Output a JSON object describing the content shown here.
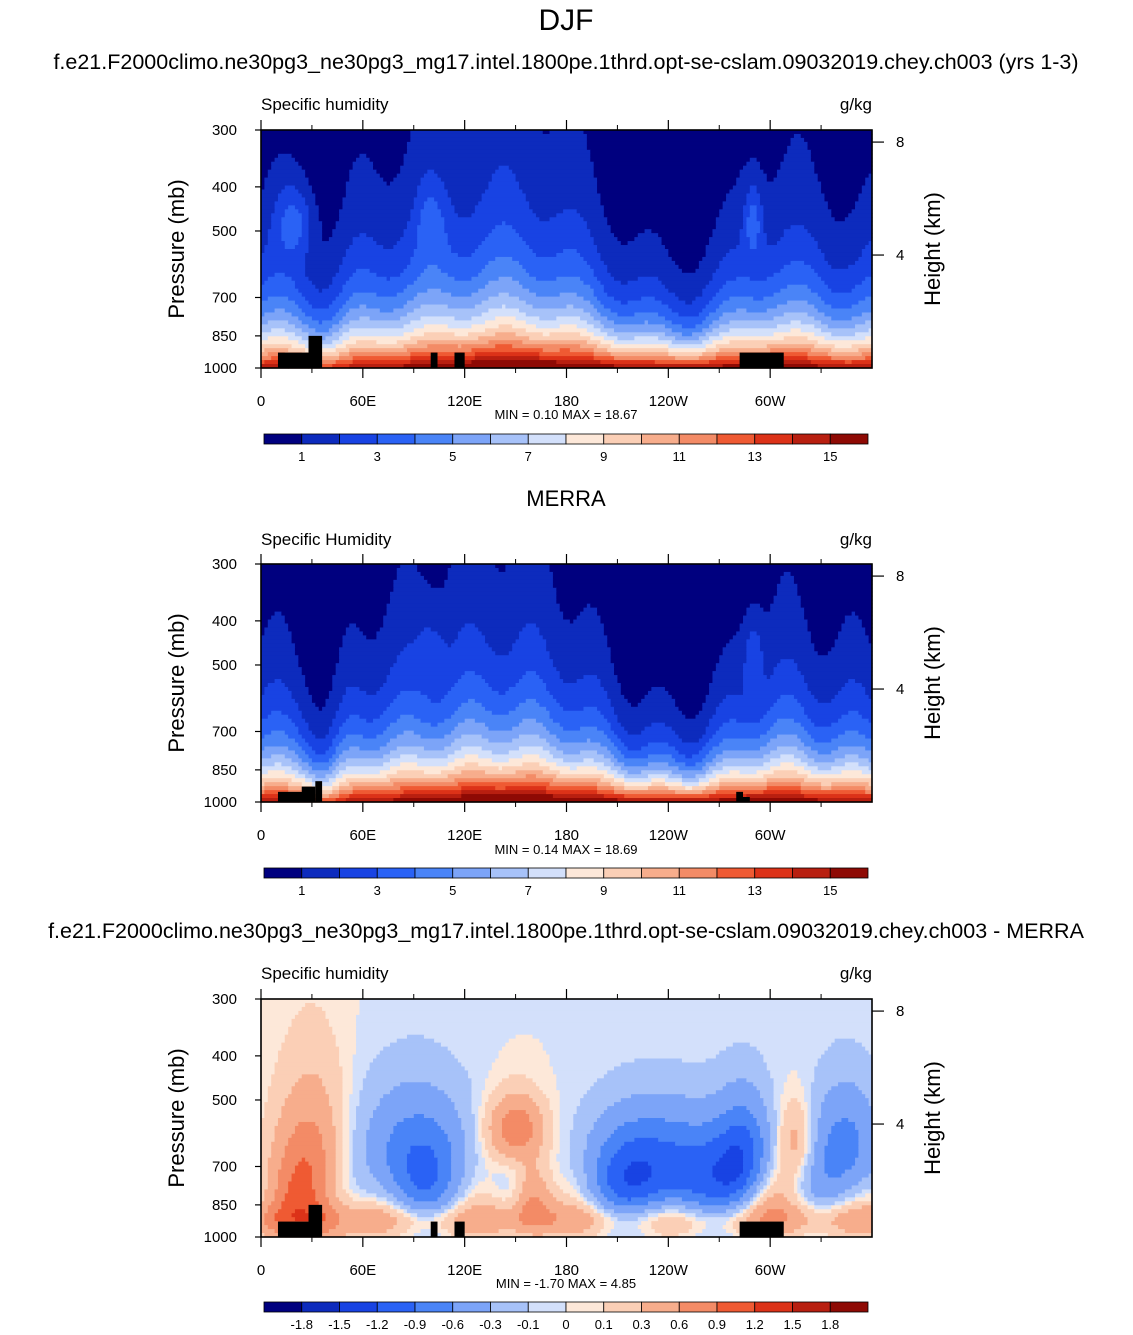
{
  "page": {
    "title": "DJF",
    "colors": {
      "frame": "#000000",
      "land": "#000000"
    }
  },
  "chart_data": [
    {
      "type": "heatmap",
      "header": "f.e21.F2000climo.ne30pg3_ne30pg3_mg17.intel.1800pe.1thrd.opt-se-cslam.09032019.chey.ch003 (yrs 1-3)",
      "left_label": "Specific humidity",
      "right_label": "g/kg",
      "ylabel": "Pressure (mb)",
      "y2label": "Height (km)",
      "x_ticks": [
        {
          "v": 0,
          "l": "0"
        },
        {
          "v": 60,
          "l": "60E"
        },
        {
          "v": 120,
          "l": "120E"
        },
        {
          "v": 180,
          "l": "180"
        },
        {
          "v": 240,
          "l": "120W"
        },
        {
          "v": 300,
          "l": "60W"
        }
      ],
      "y_ticks": [
        300,
        400,
        500,
        700,
        850,
        1000
      ],
      "y2_ticks": [
        {
          "km": 8,
          "l": "8"
        },
        {
          "km": 4,
          "l": "4"
        }
      ],
      "ylim": [
        1000,
        300
      ],
      "xlim": [
        0,
        360
      ],
      "stats_text": "MIN =   0.10  MAX =  18.67",
      "min": 0.1,
      "max": 18.67,
      "colorbar": {
        "levels": [
          0,
          1,
          2,
          3,
          4,
          5,
          6,
          7,
          8,
          9,
          10,
          11,
          12,
          13,
          14,
          15,
          16
        ],
        "labels": [
          "1",
          "3",
          "5",
          "7",
          "9",
          "11",
          "13",
          "15"
        ],
        "label_level_index": [
          1,
          3,
          5,
          7,
          9,
          11,
          13,
          15
        ]
      },
      "field": "mean",
      "mask_boxes": [
        [
          10,
          32,
          925,
          1000
        ],
        [
          28,
          36,
          850,
          1000
        ],
        [
          100,
          104,
          925,
          1000
        ],
        [
          114,
          120,
          925,
          1000
        ],
        [
          282,
          308,
          925,
          1000
        ]
      ]
    },
    {
      "type": "heatmap",
      "header": "MERRA",
      "left_label": "Specific Humidity",
      "right_label": "g/kg",
      "ylabel": "Pressure (mb)",
      "y2label": "Height (km)",
      "x_ticks": [
        {
          "v": 0,
          "l": "0"
        },
        {
          "v": 60,
          "l": "60E"
        },
        {
          "v": 120,
          "l": "120E"
        },
        {
          "v": 180,
          "l": "180"
        },
        {
          "v": 240,
          "l": "120W"
        },
        {
          "v": 300,
          "l": "60W"
        }
      ],
      "y_ticks": [
        300,
        400,
        500,
        700,
        850,
        1000
      ],
      "y2_ticks": [
        {
          "km": 8,
          "l": "8"
        },
        {
          "km": 4,
          "l": "4"
        }
      ],
      "ylim": [
        1000,
        300
      ],
      "xlim": [
        0,
        360
      ],
      "stats_text": "MIN =   0.14  MAX =  18.69",
      "min": 0.14,
      "max": 18.69,
      "colorbar": {
        "levels": [
          0,
          1,
          2,
          3,
          4,
          5,
          6,
          7,
          8,
          9,
          10,
          11,
          12,
          13,
          14,
          15,
          16
        ],
        "labels": [
          "1",
          "3",
          "5",
          "7",
          "9",
          "11",
          "13",
          "15"
        ],
        "label_level_index": [
          1,
          3,
          5,
          7,
          9,
          11,
          13,
          15
        ]
      },
      "field": "merra",
      "mask_boxes": [
        [
          10,
          26,
          950,
          1000
        ],
        [
          24,
          32,
          925,
          1000
        ],
        [
          32,
          36,
          900,
          1000
        ],
        [
          280,
          284,
          950,
          1000
        ],
        [
          282,
          288,
          975,
          1000
        ]
      ]
    },
    {
      "type": "heatmap",
      "header": "f.e21.F2000climo.ne30pg3_ne30pg3_mg17.intel.1800pe.1thrd.opt-se-cslam.09032019.chey.ch003 - MERRA",
      "left_label": "Specific humidity",
      "right_label": "g/kg",
      "ylabel": "Pressure (mb)",
      "y2label": "Height (km)",
      "x_ticks": [
        {
          "v": 0,
          "l": "0"
        },
        {
          "v": 60,
          "l": "60E"
        },
        {
          "v": 120,
          "l": "120E"
        },
        {
          "v": 180,
          "l": "180"
        },
        {
          "v": 240,
          "l": "120W"
        },
        {
          "v": 300,
          "l": "60W"
        }
      ],
      "y_ticks": [
        300,
        400,
        500,
        700,
        850,
        1000
      ],
      "y2_ticks": [
        {
          "km": 8,
          "l": "8"
        },
        {
          "km": 4,
          "l": "4"
        }
      ],
      "ylim": [
        1000,
        300
      ],
      "xlim": [
        0,
        360
      ],
      "stats_text": "MIN =  -1.70  MAX =   4.85",
      "min": -1.7,
      "max": 4.85,
      "colorbar": {
        "levels": [
          -2.1,
          -1.8,
          -1.5,
          -1.2,
          -0.9,
          -0.6,
          -0.3,
          -0.1,
          0,
          0.1,
          0.3,
          0.6,
          0.9,
          1.2,
          1.5,
          1.8,
          2.1
        ],
        "labels": [
          "-1.8",
          "-1.5",
          "-1.2",
          "-0.9",
          "-0.6",
          "-0.3",
          "-0.1",
          "0",
          "0.1",
          "0.3",
          "0.6",
          "0.9",
          "1.2",
          "1.5",
          "1.8"
        ],
        "label_level_index": [
          1,
          2,
          3,
          4,
          5,
          6,
          7,
          8,
          9,
          10,
          11,
          12,
          13,
          14,
          15
        ]
      },
      "field": "diff",
      "mask_boxes": [
        [
          10,
          32,
          925,
          1000
        ],
        [
          28,
          36,
          850,
          1000
        ],
        [
          100,
          104,
          925,
          1000
        ],
        [
          114,
          120,
          925,
          1000
        ],
        [
          282,
          308,
          925,
          1000
        ]
      ]
    }
  ],
  "palette": [
    "#00007f",
    "#0d2bbd",
    "#1843e3",
    "#2a62f5",
    "#4a84f7",
    "#7ca4f8",
    "#a7c2f9",
    "#d3e0fb",
    "#fde8d9",
    "#fbcfb6",
    "#f7ad8c",
    "#f38b66",
    "#ef5a33",
    "#dc3218",
    "#b81f10",
    "#8e0a04"
  ]
}
